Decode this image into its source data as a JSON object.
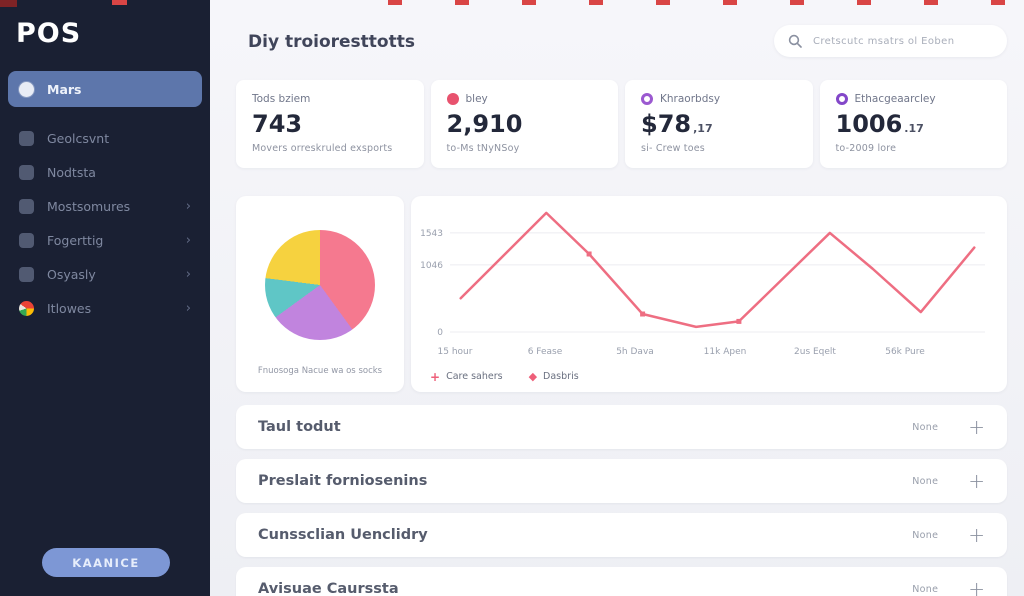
{
  "app": {
    "name": "POS"
  },
  "sidebar": {
    "items": [
      {
        "label": "Mars",
        "active": true
      },
      {
        "label": "Geolcsvnt",
        "active": false
      },
      {
        "label": "Nodtsta",
        "active": false
      },
      {
        "label": "Mostsomures",
        "active": false,
        "chevron": true
      },
      {
        "label": "Fogerttig",
        "active": false,
        "chevron": true
      },
      {
        "label": "Osyasly",
        "active": false,
        "chevron": true
      },
      {
        "label": "Itlowes",
        "active": false,
        "chevron": true
      }
    ],
    "button_label": "KAANICE",
    "active_bg": "#5d76ab",
    "bg": "#1a2033"
  },
  "header": {
    "title": "Diy troioresttotts",
    "search_placeholder": "Cretscutc msatrs ol Eoben"
  },
  "stats": [
    {
      "label": "Tods bziem",
      "value": "743",
      "suffix": "",
      "sub": "Movers orreskruled exsports",
      "icon_color": null
    },
    {
      "label": "bley",
      "value": "2,910",
      "suffix": "",
      "sub": "to-Ms tNyNSoy",
      "icon_color": "#e8526e"
    },
    {
      "label": "Khraorbdsy",
      "value": "$78",
      "suffix": ",17",
      "sub": "si- Crew toes",
      "icon_color": "#9b59d0"
    },
    {
      "label": "Ethacgeaarcley",
      "value": "1006",
      "suffix": ".17",
      "sub": "to-2009 lore",
      "icon_color": "#8347c9"
    }
  ],
  "chart_data": [
    {
      "type": "pie",
      "caption": "Fnuosoga Nacue wa os socks",
      "slices": [
        {
          "label": "segment-1",
          "value": 40,
          "color": "#f5798f"
        },
        {
          "label": "segment-2",
          "value": 25,
          "color": "#c184de"
        },
        {
          "label": "segment-3",
          "value": 12,
          "color": "#5fc6c6"
        },
        {
          "label": "segment-4",
          "value": 23,
          "color": "#f6d23f"
        }
      ],
      "legend_position": "none"
    },
    {
      "type": "line",
      "ylim": [
        0,
        1900
      ],
      "grid": true,
      "y_ticks": [
        {
          "label": "1543",
          "value": 1543
        },
        {
          "label": "1046",
          "value": 1046
        },
        {
          "label": "0",
          "value": 0
        }
      ],
      "x_labels": [
        "15 hour",
        "6 Fease",
        "5h Dava",
        "11k Apen",
        "2us Eqelt",
        "56k Pure"
      ],
      "series": [
        {
          "name": "Care sahers",
          "color": "#ee6e82",
          "x_pct": [
            2,
            18,
            26,
            36,
            46,
            54,
            71,
            79,
            88,
            98
          ],
          "values": [
            525,
            1855,
            1215,
            280,
            80,
            165,
            1543,
            985,
            310,
            1315
          ],
          "marker_indices": [
            2,
            3,
            5
          ]
        }
      ],
      "legend": [
        {
          "label": "Care sahers",
          "marker": "plus",
          "color": "#ee5f79"
        },
        {
          "label": "Dasbris",
          "marker": "diamond",
          "color": "#ee5f79"
        }
      ],
      "legend_position": "bottom-left"
    }
  ],
  "rows": [
    {
      "label": "Taul todut",
      "value": "None"
    },
    {
      "label": "Preslait forniosenins",
      "value": "None"
    },
    {
      "label": "Cunssclian Uenclidry",
      "value": "None"
    },
    {
      "label": "Avisuae Caurssta",
      "value": "None"
    }
  ]
}
